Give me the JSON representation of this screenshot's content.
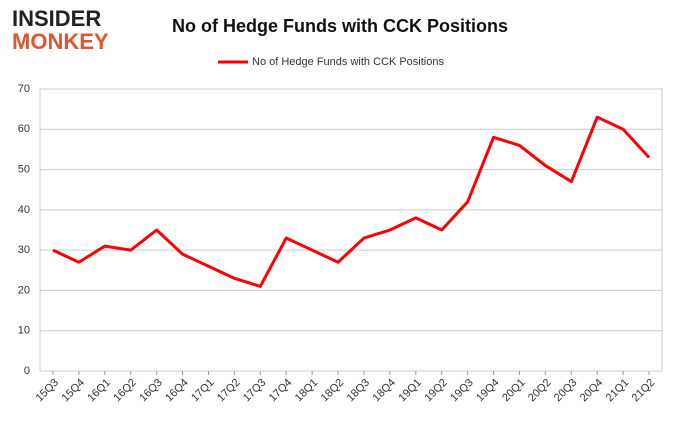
{
  "logo": {
    "line1": "INSIDER",
    "line2": "MONKEY"
  },
  "chart_data": {
    "type": "line",
    "title": "No of Hedge Funds with CCK Positions",
    "categories": [
      "15Q3",
      "15Q4",
      "16Q1",
      "16Q2",
      "16Q3",
      "16Q4",
      "17Q1",
      "17Q2",
      "17Q3",
      "17Q4",
      "18Q1",
      "18Q2",
      "18Q3",
      "18Q4",
      "19Q1",
      "19Q2",
      "19Q3",
      "19Q4",
      "20Q1",
      "20Q2",
      "20Q3",
      "20Q4",
      "21Q1",
      "21Q2"
    ],
    "series": [
      {
        "name": "No of Hedge Funds with CCK Positions",
        "color": "#ff0000",
        "values": [
          30,
          27,
          31,
          30,
          35,
          29,
          26,
          23,
          21,
          33,
          30,
          27,
          33,
          35,
          38,
          35,
          42,
          58,
          56,
          51,
          47,
          63,
          60,
          53
        ]
      }
    ],
    "ylim": [
      0,
      70
    ],
    "yticks": [
      0,
      10,
      20,
      30,
      40,
      50,
      60,
      70
    ],
    "grid": true,
    "legend": "top"
  }
}
